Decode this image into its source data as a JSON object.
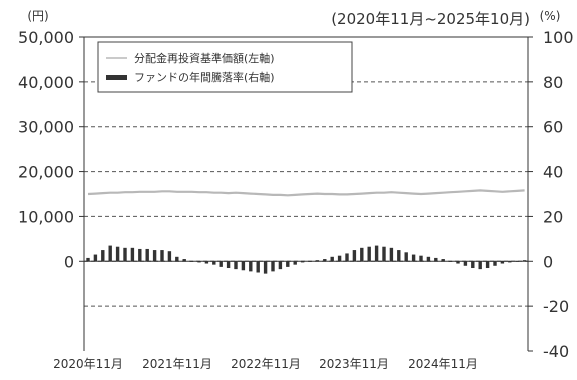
{
  "chart_data": {
    "type": "bar",
    "period": "(2020年11月~2025年10月)",
    "left_axis": {
      "unit": "(円)",
      "ticks": [
        "50,000",
        "40,000",
        "30,000",
        "20,000",
        "10,000",
        "0"
      ],
      "range": [
        -20000,
        50000
      ]
    },
    "right_axis": {
      "unit": "(%)",
      "ticks": [
        "100",
        "80",
        "60",
        "40",
        "20",
        "0",
        "-20",
        "-40"
      ],
      "range": [
        -40,
        100
      ]
    },
    "x_ticks": [
      "2020年11月",
      "2021年11月",
      "2022年11月",
      "2023年11月",
      "2024年11月"
    ],
    "grid": "dashed at right-axis ticks",
    "legend": {
      "position": "top-left",
      "entries": [
        "分配金再投資基準価額(左軸)",
        "ファンドの年間騰落率(右軸)"
      ]
    },
    "series": [
      {
        "axis": "left",
        "kind": "line",
        "values": [
          15000,
          15100,
          15200,
          15300,
          15300,
          15400,
          15400,
          15500,
          15500,
          15500,
          15600,
          15600,
          15500,
          15500,
          15500,
          15400,
          15400,
          15300,
          15300,
          15200,
          15300,
          15200,
          15100,
          15000,
          14900,
          14800,
          14800,
          14700,
          14800,
          14900,
          15000,
          15100,
          15000,
          15000,
          14900,
          14900,
          15000,
          15100,
          15200,
          15300,
          15300,
          15400,
          15300,
          15200,
          15100,
          15000,
          15100,
          15200,
          15300,
          15400,
          15500,
          15600,
          15700,
          15800,
          15700,
          15600,
          15500,
          15600,
          15700,
          15800
        ]
      },
      {
        "axis": "right",
        "kind": "bar",
        "values": [
          1.5,
          3,
          5,
          7,
          6.5,
          6,
          6,
          5.5,
          5.5,
          5,
          5,
          4.5,
          2,
          1,
          0,
          -0.5,
          -1,
          -1.5,
          -2.5,
          -3,
          -3.5,
          -4,
          -4.5,
          -5,
          -5.5,
          -4.5,
          -3.5,
          -2.5,
          -1.5,
          -0.5,
          0,
          0.5,
          1,
          2,
          2.5,
          3.5,
          5,
          6,
          6.5,
          7,
          6.5,
          6,
          5,
          4,
          3,
          2.5,
          2,
          1.5,
          1,
          0,
          -1,
          -2,
          -3,
          -3.5,
          -3,
          -2,
          -1,
          -0.5,
          0,
          0.5
        ]
      }
    ]
  }
}
